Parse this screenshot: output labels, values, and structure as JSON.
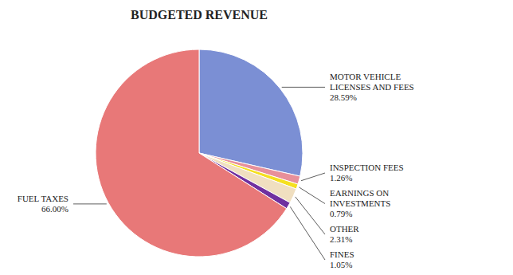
{
  "chart_data": {
    "type": "pie",
    "title": "BUDGETED REVENUE",
    "categories": [
      "MOTOR VEHICLE\nLICENSES AND FEES",
      "INSPECTION FEES",
      "EARNINGS ON\nINVESTMENTS",
      "OTHER",
      "FINES",
      "FUEL TAXES"
    ],
    "values": [
      28.59,
      1.26,
      0.79,
      2.31,
      1.05,
      66.0
    ],
    "value_labels": [
      "28.59%",
      "1.26%",
      "0.79%",
      "2.31%",
      "1.05%",
      "66.00%"
    ],
    "colors": [
      "#7b8fd4",
      "#e8909a",
      "#f5e020",
      "#f0dfc0",
      "#7030a0",
      "#e87878"
    ],
    "data_labels": true
  }
}
